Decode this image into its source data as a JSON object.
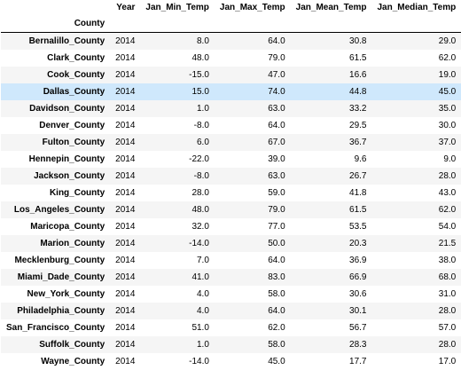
{
  "table": {
    "index_name": "County",
    "columns": [
      "Year",
      "Jan_Min_Temp",
      "Jan_Max_Temp",
      "Jan_Mean_Temp",
      "Jan_Median_Temp"
    ],
    "highlight_color": "#cfe8fc",
    "rows": [
      {
        "county": "Bernalillo_County",
        "year": "2014",
        "min": "8.0",
        "max": "64.0",
        "mean": "30.8",
        "median": "29.0"
      },
      {
        "county": "Clark_County",
        "year": "2014",
        "min": "48.0",
        "max": "79.0",
        "mean": "61.5",
        "median": "62.0"
      },
      {
        "county": "Cook_County",
        "year": "2014",
        "min": "-15.0",
        "max": "47.0",
        "mean": "16.6",
        "median": "19.0"
      },
      {
        "county": "Dallas_County",
        "year": "2014",
        "min": "15.0",
        "max": "74.0",
        "mean": "44.8",
        "median": "45.0"
      },
      {
        "county": "Davidson_County",
        "year": "2014",
        "min": "1.0",
        "max": "63.0",
        "mean": "33.2",
        "median": "35.0"
      },
      {
        "county": "Denver_County",
        "year": "2014",
        "min": "-8.0",
        "max": "64.0",
        "mean": "29.5",
        "median": "30.0"
      },
      {
        "county": "Fulton_County",
        "year": "2014",
        "min": "6.0",
        "max": "67.0",
        "mean": "36.7",
        "median": "37.0"
      },
      {
        "county": "Hennepin_County",
        "year": "2014",
        "min": "-22.0",
        "max": "39.0",
        "mean": "9.6",
        "median": "9.0"
      },
      {
        "county": "Jackson_County",
        "year": "2014",
        "min": "-8.0",
        "max": "63.0",
        "mean": "26.7",
        "median": "28.0"
      },
      {
        "county": "King_County",
        "year": "2014",
        "min": "28.0",
        "max": "59.0",
        "mean": "41.8",
        "median": "43.0"
      },
      {
        "county": "Los_Angeles_County",
        "year": "2014",
        "min": "48.0",
        "max": "79.0",
        "mean": "61.5",
        "median": "62.0"
      },
      {
        "county": "Maricopa_County",
        "year": "2014",
        "min": "32.0",
        "max": "77.0",
        "mean": "53.5",
        "median": "54.0"
      },
      {
        "county": "Marion_County",
        "year": "2014",
        "min": "-14.0",
        "max": "50.0",
        "mean": "20.3",
        "median": "21.5"
      },
      {
        "county": "Mecklenburg_County",
        "year": "2014",
        "min": "7.0",
        "max": "64.0",
        "mean": "36.9",
        "median": "38.0"
      },
      {
        "county": "Miami_Dade_County",
        "year": "2014",
        "min": "41.0",
        "max": "83.0",
        "mean": "66.9",
        "median": "68.0"
      },
      {
        "county": "New_York_County",
        "year": "2014",
        "min": "4.0",
        "max": "58.0",
        "mean": "30.6",
        "median": "31.0"
      },
      {
        "county": "Philadelphia_County",
        "year": "2014",
        "min": "4.0",
        "max": "64.0",
        "mean": "30.1",
        "median": "28.0"
      },
      {
        "county": "San_Francisco_County",
        "year": "2014",
        "min": "51.0",
        "max": "62.0",
        "mean": "56.7",
        "median": "57.0"
      },
      {
        "county": "Suffolk_County",
        "year": "2014",
        "min": "1.0",
        "max": "58.0",
        "mean": "28.3",
        "median": "28.0"
      },
      {
        "county": "Wayne_County",
        "year": "2014",
        "min": "-14.0",
        "max": "45.0",
        "mean": "17.7",
        "median": "17.0"
      }
    ]
  }
}
